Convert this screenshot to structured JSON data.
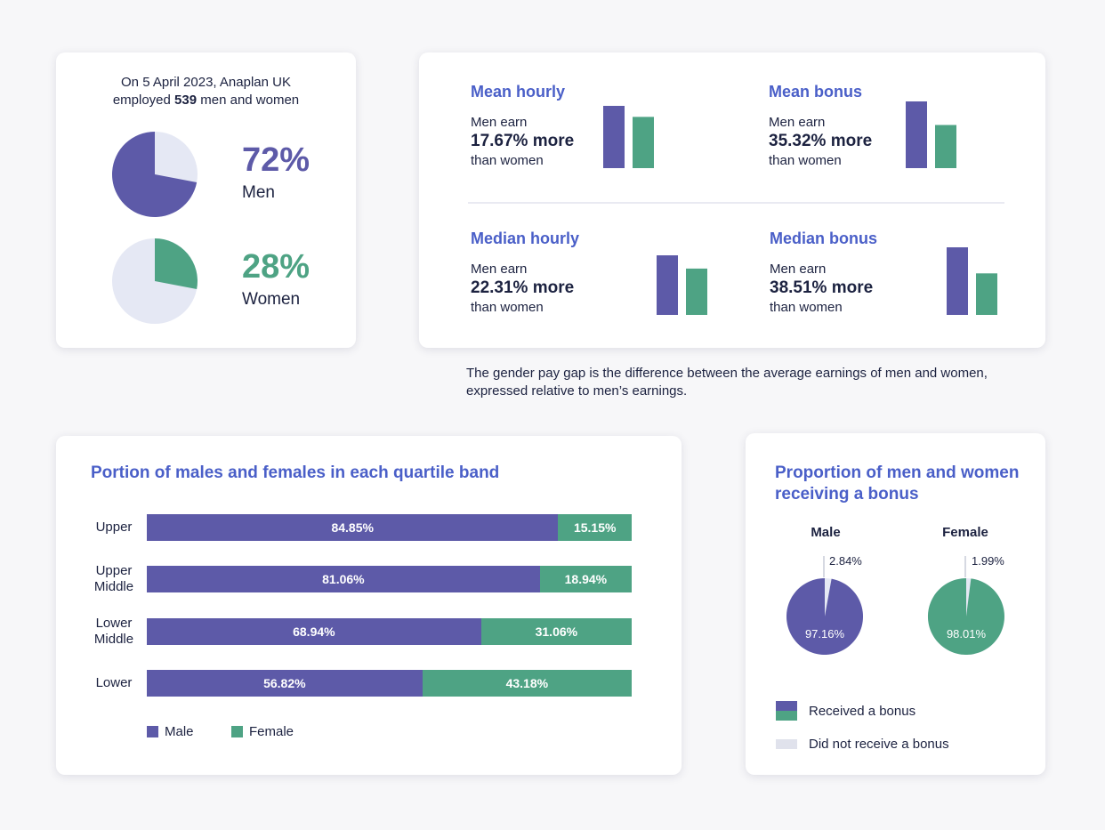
{
  "employees": {
    "caption_line1": "On 5 April 2023, Anaplan UK",
    "caption_pre": "employed",
    "caption_count": "539",
    "caption_post": "men and women",
    "men": {
      "pct_label": "72%",
      "value": 72,
      "label": "Men"
    },
    "women": {
      "pct_label": "28%",
      "value": 28,
      "label": "Women"
    }
  },
  "gaps": [
    {
      "title": "Mean hourly",
      "line1": "Men earn",
      "value_label": "17.67% more",
      "line3": "than women",
      "men_value": 100,
      "women_value": 82.33
    },
    {
      "title": "Mean bonus",
      "line1": "Men earn",
      "value_label": "35.32% more",
      "line3": "than women",
      "men_value": 100,
      "women_value": 64.68
    },
    {
      "title": "Median hourly",
      "line1": "Men earn",
      "value_label": "22.31% more",
      "line3": "than women",
      "men_value": 100,
      "women_value": 77.69
    },
    {
      "title": "Median bonus",
      "line1": "Men earn",
      "value_label": "38.51% more",
      "line3": "than women",
      "men_value": 100,
      "women_value": 61.49
    }
  ],
  "note": "The gender pay gap is the difference between the average earnings of men and women, expressed relative to men’s earnings.",
  "colors": {
    "men": "#5d5aa8",
    "women": "#4ea384",
    "light": "#e5e8f4",
    "title": "#4a5fc8"
  },
  "chart_data": [
    {
      "type": "bar",
      "orientation": "horizontal-stacked",
      "title": "Portion of males and females in each quartile band",
      "categories": [
        "Upper",
        "Upper Middle",
        "Lower Middle",
        "Lower"
      ],
      "category_lines": [
        [
          "Upper"
        ],
        [
          "Upper",
          "Middle"
        ],
        [
          "Lower",
          "Middle"
        ],
        [
          "Lower"
        ]
      ],
      "series": [
        {
          "name": "Male",
          "values": [
            84.85,
            81.06,
            68.94,
            56.82
          ],
          "labels": [
            "84.85%",
            "81.06%",
            "68.94%",
            "56.82%"
          ]
        },
        {
          "name": "Female",
          "values": [
            15.15,
            18.94,
            31.06,
            43.18
          ],
          "labels": [
            "15.15%",
            "18.94%",
            "31.06%",
            "43.18%"
          ]
        }
      ],
      "legend": [
        "Male",
        "Female"
      ],
      "xlim": [
        0,
        100
      ]
    },
    {
      "type": "pie",
      "title": "Proportion of men and women receiving a bonus",
      "pies": [
        {
          "name": "Male",
          "received": 97.16,
          "received_label": "97.16%",
          "not_received": 2.84,
          "not_received_label": "2.84%"
        },
        {
          "name": "Female",
          "received": 98.01,
          "received_label": "98.01%",
          "not_received": 1.99,
          "not_received_label": "1.99%"
        }
      ],
      "legend": [
        "Received a bonus",
        "Did not receive a bonus"
      ]
    }
  ]
}
